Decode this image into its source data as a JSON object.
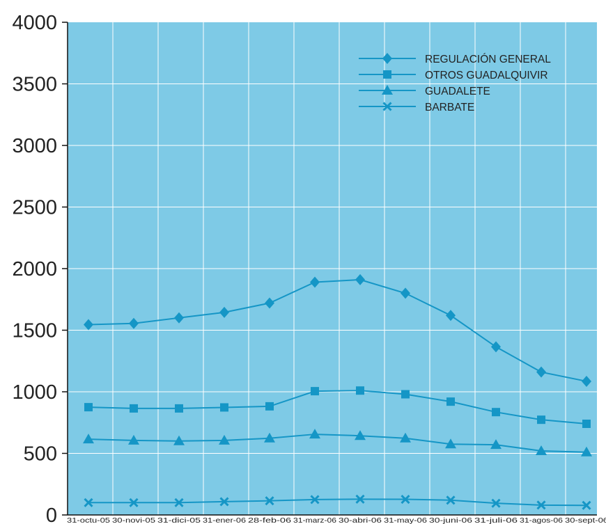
{
  "chart_data": {
    "type": "line",
    "categories": [
      "31-octu-05",
      "30-novi-05",
      "31-dici-05",
      "31-ener-06",
      "28-feb-06",
      "31-marz-06",
      "30-abri-06",
      "31-may-06",
      "30-juni-06",
      "31-juli-06",
      "31-agos-06",
      "30-sept-06"
    ],
    "ylim": [
      0,
      4000
    ],
    "yticks": [
      4000,
      3500,
      3000,
      2500,
      2000,
      1500,
      1000,
      500,
      0
    ],
    "grid": true,
    "legend_position": "top-right",
    "colors": {
      "plot_bg": "#7ecae6",
      "series": "#1596c6",
      "grid": "#ffffff"
    },
    "series": [
      {
        "name": "REGULACIÓN GENERAL",
        "marker": "diamond",
        "values": [
          1545,
          1555,
          1600,
          1645,
          1720,
          1890,
          1910,
          1800,
          1620,
          1365,
          1160,
          1085
        ]
      },
      {
        "name": "OTROS GUADALQUIVIR",
        "marker": "square",
        "values": [
          875,
          865,
          865,
          873,
          882,
          1005,
          1010,
          980,
          920,
          835,
          773,
          740
        ]
      },
      {
        "name": "GUADALETE",
        "marker": "triangle",
        "values": [
          615,
          605,
          600,
          605,
          623,
          655,
          643,
          623,
          575,
          570,
          520,
          510
        ]
      },
      {
        "name": "BARBATE",
        "marker": "x",
        "values": [
          100,
          100,
          100,
          108,
          115,
          125,
          128,
          127,
          120,
          95,
          80,
          78
        ]
      }
    ]
  }
}
